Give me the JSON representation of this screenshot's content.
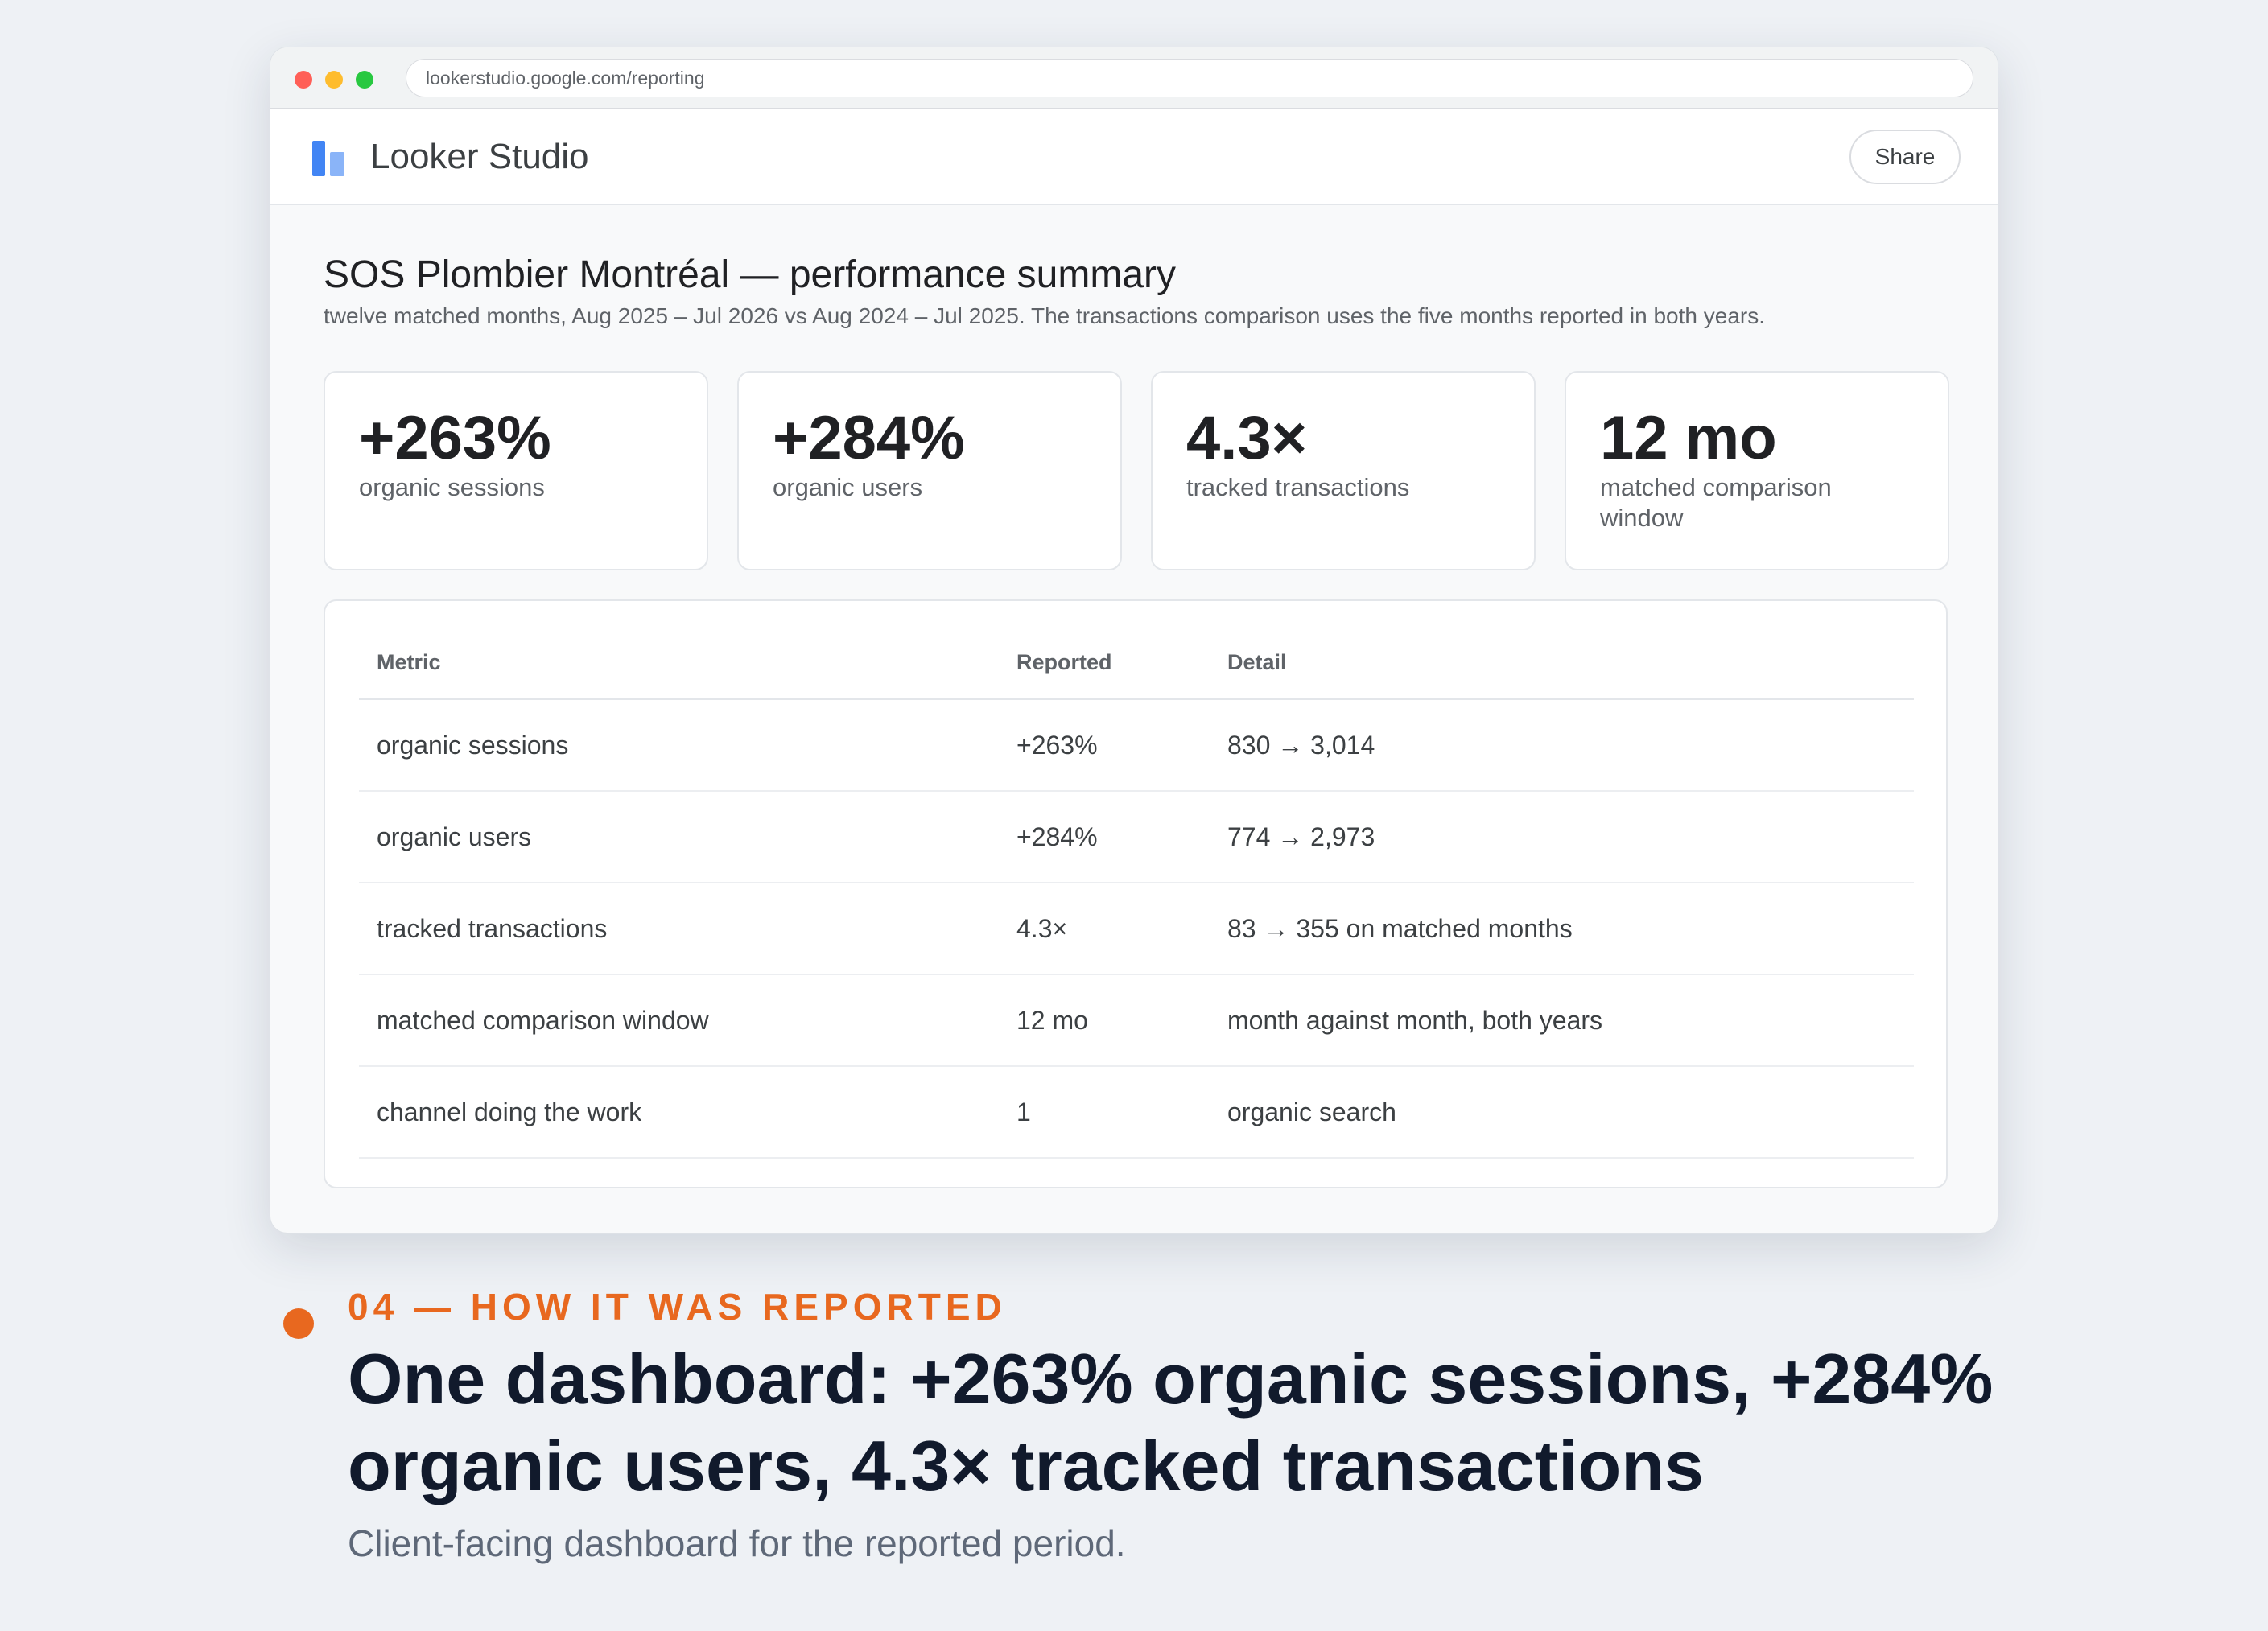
{
  "browser": {
    "url": "lookerstudio.google.com/reporting"
  },
  "app": {
    "name": "Looker Studio",
    "share_label": "Share"
  },
  "report": {
    "title": "SOS Plombier Montréal — performance summary",
    "subtitle": "twelve matched months, Aug 2025 – Jul 2026 vs Aug 2024 – Jul 2025. The transactions comparison uses the five months reported in both years."
  },
  "kpis": [
    {
      "value": "+263%",
      "label": "organic sessions"
    },
    {
      "value": "+284%",
      "label": "organic users"
    },
    {
      "value": "4.3×",
      "label": "tracked transactions"
    },
    {
      "value": "12 mo",
      "label": "matched comparison window"
    }
  ],
  "table": {
    "headers": {
      "metric": "Metric",
      "reported": "Reported",
      "detail": "Detail"
    },
    "rows": [
      {
        "metric": "organic sessions",
        "reported": "+263%",
        "detail": "830 → 3,014"
      },
      {
        "metric": "organic users",
        "reported": "+284%",
        "detail": "774 → 2,973"
      },
      {
        "metric": "tracked transactions",
        "reported": "4.3×",
        "detail": "83 → 355 on matched months"
      },
      {
        "metric": "matched comparison window",
        "reported": "12 mo",
        "detail": "month against month, both years"
      },
      {
        "metric": "channel doing the work",
        "reported": "1",
        "detail": "organic search"
      }
    ]
  },
  "caption": {
    "eyebrow": "04 — HOW IT WAS REPORTED",
    "headline": "One dashboard: +263% organic sessions, +284% organic users, 4.3× tracked transactions",
    "text": "Client-facing dashboard for the reported period."
  },
  "colors": {
    "accent": "#e8681f",
    "logo_dark": "#4285f4",
    "logo_light": "#8ab4f8"
  }
}
